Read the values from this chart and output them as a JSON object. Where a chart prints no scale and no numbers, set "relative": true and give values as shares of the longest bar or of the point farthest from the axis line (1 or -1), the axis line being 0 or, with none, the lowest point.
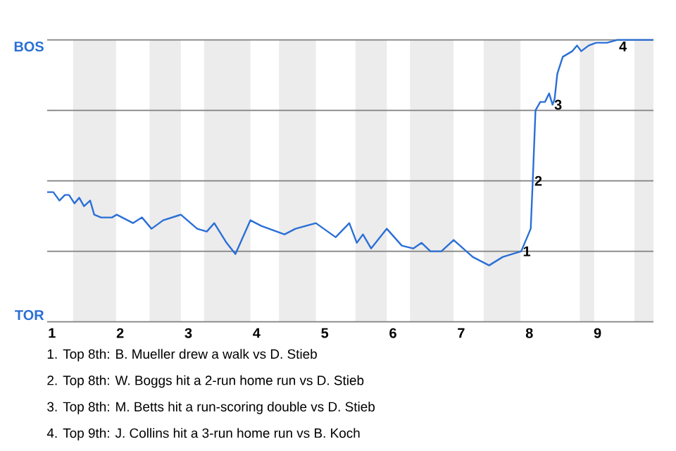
{
  "chart_data": {
    "type": "line",
    "relative": true,
    "x": [
      0.93,
      1.02,
      1.11,
      1.19,
      1.25,
      1.33,
      1.4,
      1.47,
      1.56,
      1.62,
      1.72,
      1.88,
      1.95,
      2.19,
      2.32,
      2.46,
      2.63,
      2.89,
      3.13,
      3.27,
      3.38,
      3.56,
      3.69,
      3.91,
      4.07,
      4.41,
      4.57,
      4.87,
      5.16,
      5.36,
      5.47,
      5.56,
      5.68,
      5.91,
      6.13,
      6.3,
      6.42,
      6.55,
      6.71,
      6.89,
      7.17,
      7.41,
      7.61,
      7.88,
      8.02,
      8.05,
      8.09,
      8.16,
      8.23,
      8.29,
      8.34,
      8.37,
      8.41,
      8.49,
      8.56,
      8.63,
      8.7,
      8.76,
      8.87,
      8.98,
      9.14,
      9.29,
      9.54,
      9.82
    ],
    "series": [
      {
        "color": "#2a6fd6",
        "values": [
          0.46,
          0.46,
          0.43,
          0.45,
          0.45,
          0.42,
          0.44,
          0.41,
          0.43,
          0.38,
          0.37,
          0.37,
          0.38,
          0.35,
          0.37,
          0.33,
          0.36,
          0.38,
          0.33,
          0.32,
          0.35,
          0.28,
          0.24,
          0.36,
          0.34,
          0.31,
          0.33,
          0.35,
          0.3,
          0.35,
          0.28,
          0.31,
          0.26,
          0.33,
          0.27,
          0.26,
          0.28,
          0.25,
          0.25,
          0.29,
          0.23,
          0.2,
          0.23,
          0.25,
          0.33,
          0.5,
          0.75,
          0.78,
          0.78,
          0.81,
          0.77,
          0.79,
          0.88,
          0.94,
          0.95,
          0.96,
          0.98,
          0.96,
          0.98,
          0.99,
          0.99,
          1,
          1,
          1
        ]
      }
    ],
    "xlim": [
      0.93,
      9.82
    ],
    "xticks": [
      1,
      2,
      3,
      4,
      5,
      6,
      7,
      8,
      9
    ],
    "marker": "none",
    "line_style": "solid",
    "ref_lines": [
      {
        "axis": "y",
        "value": 0,
        "color": "#808080"
      },
      {
        "axis": "y",
        "value": 0.25,
        "color": "#808080"
      },
      {
        "axis": "y",
        "value": 0.5,
        "color": "#808080"
      },
      {
        "axis": "y",
        "value": 0.75,
        "color": "#808080"
      },
      {
        "axis": "y",
        "value": 1,
        "color": "#808080"
      }
    ],
    "bands": [
      {
        "axis": "x",
        "from": 1.31,
        "to": 1.94,
        "color": "#ececec"
      },
      {
        "axis": "x",
        "from": 2.43,
        "to": 2.89,
        "color": "#ececec"
      },
      {
        "axis": "x",
        "from": 3.23,
        "to": 3.91,
        "color": "#ececec"
      },
      {
        "axis": "x",
        "from": 4.33,
        "to": 4.87,
        "color": "#ececec"
      },
      {
        "axis": "x",
        "from": 5.45,
        "to": 5.91,
        "color": "#ececec"
      },
      {
        "axis": "x",
        "from": 6.25,
        "to": 6.89,
        "color": "#ececec"
      },
      {
        "axis": "x",
        "from": 7.33,
        "to": 7.87,
        "color": "#ececec"
      },
      {
        "axis": "x",
        "from": 8.74,
        "to": 8.95,
        "color": "#ececec"
      },
      {
        "axis": "x",
        "from": 9.54,
        "to": 9.82,
        "color": "#ececec"
      }
    ],
    "annotations": [
      "BOS",
      "TOR",
      {
        "text": "1",
        "x": 7.88,
        "y": 0.25
      },
      {
        "text": "2",
        "x": 8.05,
        "y": 0.5
      },
      {
        "text": "3",
        "x": 8.34,
        "y": 0.77
      },
      {
        "text": "4",
        "x": 9.29,
        "y": 1
      },
      "1. Top 8th: B. Mueller drew a walk vs D. Stieb",
      "2. Top 8th: W. Boggs hit a 2-run home run vs D. Stieb",
      "3. Top 8th: M. Betts hit a run-scoring double vs D. Stieb",
      "4. Top 9th: J. Collins hit a 3-run home run vs B. Koch"
    ]
  }
}
